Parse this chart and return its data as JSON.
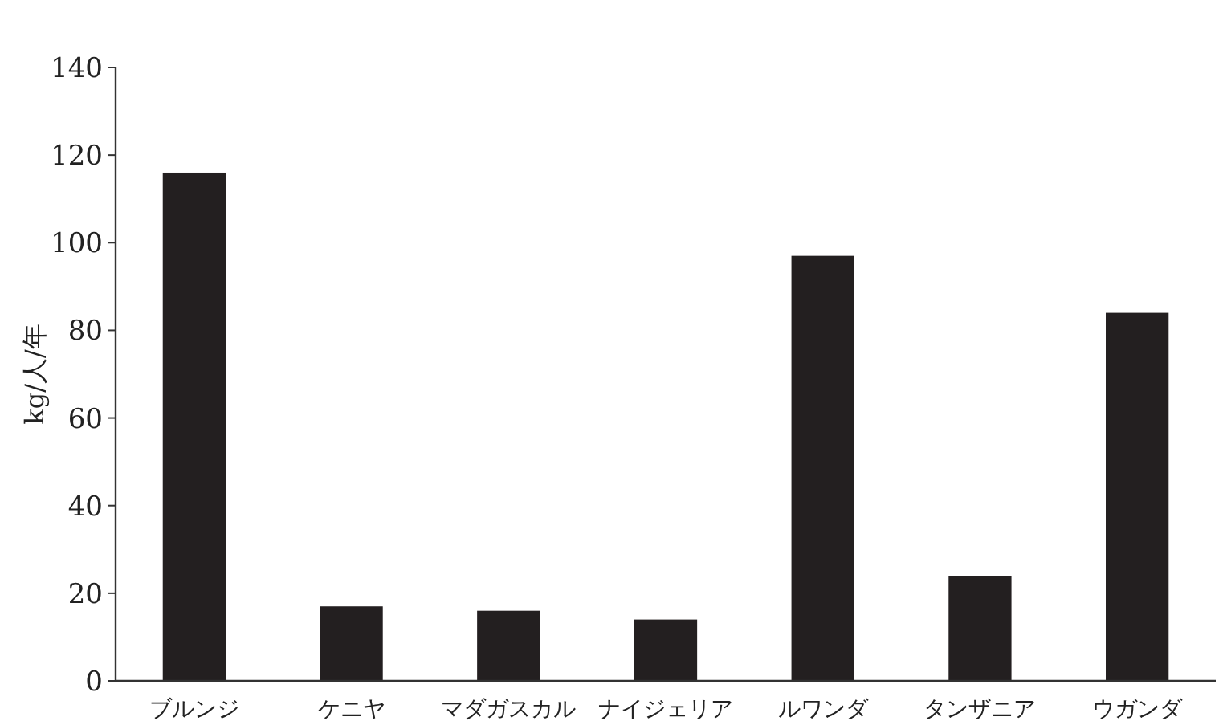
{
  "chart_data": {
    "type": "bar",
    "ylabel": "kg/人/年",
    "categories": [
      "ブルンジ",
      "ケニヤ",
      "マダガスカル",
      "ナイジェリア",
      "ルワンダ",
      "タンザニア",
      "ウガンダ"
    ],
    "values": [
      116,
      17,
      16,
      14,
      97,
      24,
      84
    ],
    "color": "#231f20",
    "ylim": [
      0,
      140
    ],
    "yticks": [
      0,
      20,
      40,
      60,
      80,
      100,
      120,
      140
    ]
  }
}
